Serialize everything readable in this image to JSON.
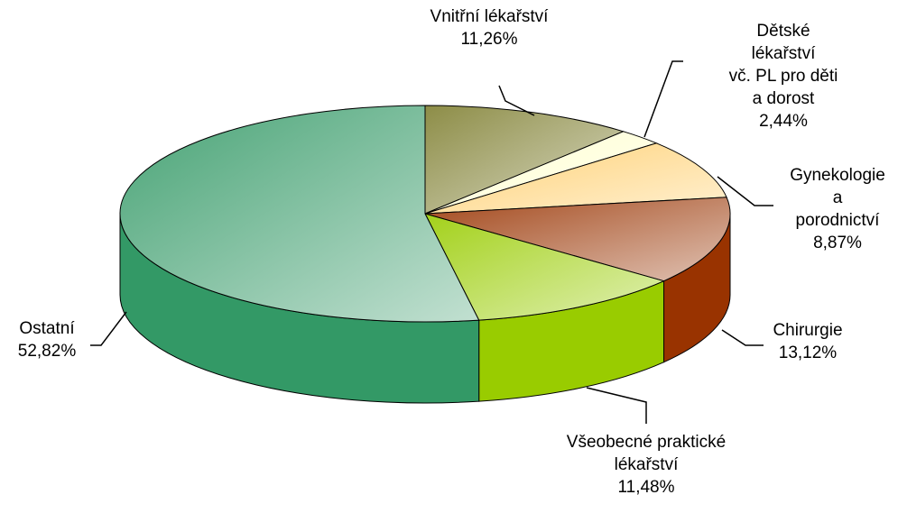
{
  "chart_data": {
    "type": "pie3d",
    "categories": [
      "Vnitřní lékařství",
      "Dětské lékařství\nvč. PL pro děti a dorost",
      "Gynekologie\na porodnictví",
      "Chirurgie",
      "Všeobecné praktické\nlékařství",
      "Ostatní"
    ],
    "values": [
      11.26,
      2.44,
      8.87,
      13.12,
      11.48,
      52.82
    ],
    "value_labels": [
      "11,26%",
      "2,44%",
      "8,87%",
      "13,12%",
      "11,48%",
      "52,82%"
    ],
    "colors": [
      "#808033",
      "#ffffcc",
      "#ffcc66",
      "#993300",
      "#99cc00",
      "#339966"
    ]
  }
}
